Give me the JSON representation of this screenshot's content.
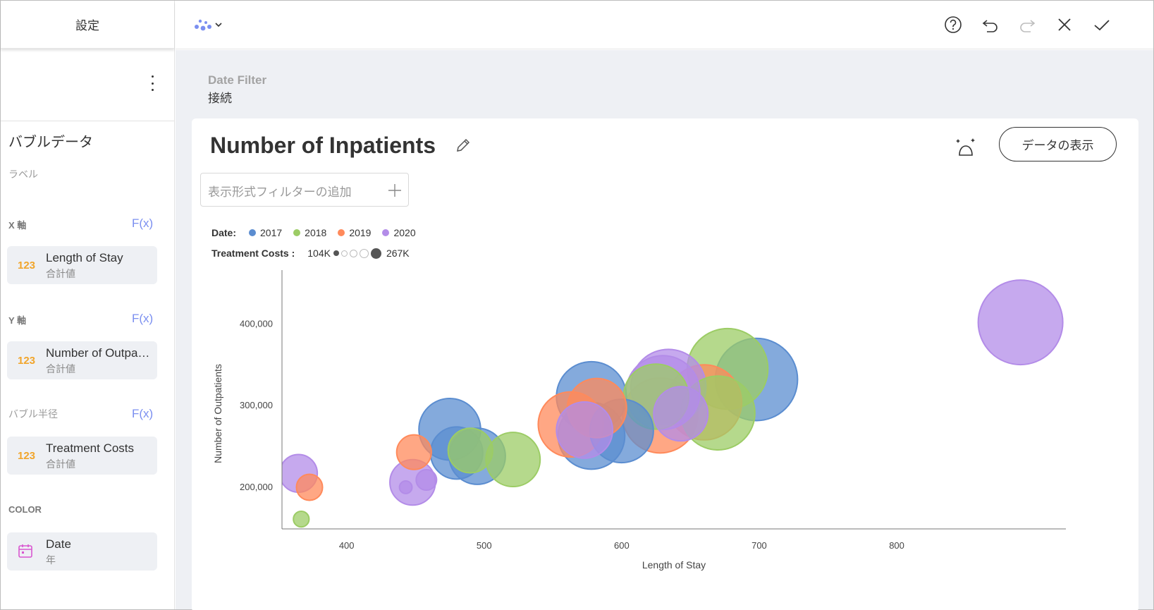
{
  "left_panel": {
    "header": "設定",
    "section_title": "バブルデータ",
    "label_field": "ラベル",
    "x_axis": {
      "label": "X 軸",
      "fx": "F(x)",
      "type_badge": "123",
      "field": "Length of Stay",
      "aggregation": "合計値"
    },
    "y_axis": {
      "label": "Y 軸",
      "fx": "F(x)",
      "type_badge": "123",
      "field": "Number of Outpatients",
      "aggregation": "合計値"
    },
    "bubble_radius": {
      "label": "バブル半径",
      "fx": "F(x)",
      "type_badge": "123",
      "field": "Treatment Costs",
      "aggregation": "合計値"
    },
    "color": {
      "label": "COLOR",
      "field": "Date",
      "aggregation": "年",
      "icon": "calendar-icon"
    }
  },
  "topbar": {
    "icons": [
      "bubble-chart-icon",
      "help-icon",
      "undo-icon",
      "redo-icon",
      "close-icon",
      "check-icon"
    ]
  },
  "date_filter": {
    "title": "Date Filter",
    "value": "接続"
  },
  "card": {
    "title": "Number of Inpatients",
    "show_data_button": "データの表示",
    "filter_placeholder": "表示形式フィルターの追加"
  },
  "colors": {
    "2017": "#5b8dd0",
    "2018": "#9ccc65",
    "2019": "#ff8a5b",
    "2020": "#b38ce8",
    "accent": "#7b8ff0",
    "badge": "#f1a52b"
  },
  "chart_data": {
    "type": "scatter",
    "subtype": "bubble",
    "xlabel": "Length of Stay",
    "ylabel": "Number of Outpatients",
    "xlim": [
      353,
      923
    ],
    "ylim": [
      148000,
      465000
    ],
    "xticks": [
      400,
      500,
      600,
      700,
      800
    ],
    "xtick_labels": [
      "400",
      "500",
      "600",
      "700",
      "800"
    ],
    "yticks": [
      200000,
      300000,
      400000
    ],
    "ytick_labels": [
      "200,000",
      "300,000",
      "400,000"
    ],
    "grid": false,
    "legend": {
      "color_title": "Date:",
      "color_entries": [
        "2017",
        "2018",
        "2019",
        "2020"
      ],
      "size_title": "Treatment Costs :",
      "size_min_label": "104K",
      "size_max_label": "267K"
    },
    "size_range": [
      104000,
      267000
    ],
    "series": [
      {
        "name": "2017",
        "points": [
          {
            "x": 475,
            "y": 270000,
            "size": 190000
          },
          {
            "x": 480,
            "y": 241000,
            "size": 165000
          },
          {
            "x": 495,
            "y": 237000,
            "size": 175000
          },
          {
            "x": 578,
            "y": 310000,
            "size": 215000
          },
          {
            "x": 578,
            "y": 262000,
            "size": 205000
          },
          {
            "x": 600,
            "y": 268000,
            "size": 195000
          },
          {
            "x": 698,
            "y": 331000,
            "size": 258000
          }
        ]
      },
      {
        "name": "2018",
        "points": [
          {
            "x": 367,
            "y": 160000,
            "size": 108000
          },
          {
            "x": 490,
            "y": 244000,
            "size": 148000
          },
          {
            "x": 521,
            "y": 233000,
            "size": 170000
          },
          {
            "x": 625,
            "y": 310000,
            "size": 200000
          },
          {
            "x": 670,
            "y": 290000,
            "size": 228000
          },
          {
            "x": 677,
            "y": 344000,
            "size": 252000
          }
        ]
      },
      {
        "name": "2019",
        "points": [
          {
            "x": 373,
            "y": 199000,
            "size": 118000
          },
          {
            "x": 449,
            "y": 242000,
            "size": 130000
          },
          {
            "x": 563,
            "y": 276000,
            "size": 200000
          },
          {
            "x": 582,
            "y": 296000,
            "size": 183000
          },
          {
            "x": 628,
            "y": 287000,
            "size": 232000
          },
          {
            "x": 660,
            "y": 303000,
            "size": 232000
          }
        ]
      },
      {
        "name": "2020",
        "points": [
          {
            "x": 365,
            "y": 216000,
            "size": 135000
          },
          {
            "x": 443,
            "y": 199000,
            "size": 106000
          },
          {
            "x": 448,
            "y": 205000,
            "size": 150000
          },
          {
            "x": 458,
            "y": 208000,
            "size": 112000
          },
          {
            "x": 573,
            "y": 269000,
            "size": 175000
          },
          {
            "x": 630,
            "y": 315000,
            "size": 228000
          },
          {
            "x": 634,
            "y": 322000,
            "size": 232000
          },
          {
            "x": 643,
            "y": 289000,
            "size": 170000
          },
          {
            "x": 890,
            "y": 401000,
            "size": 267000
          }
        ]
      }
    ]
  }
}
